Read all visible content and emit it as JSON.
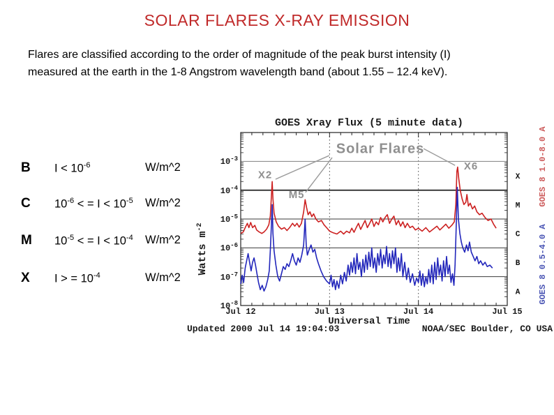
{
  "slide": {
    "title": "SOLAR FLARES X-RAY EMISSION",
    "title_color": "#c02929",
    "intro": {
      "line1": "Flares are classified according to the order of magnitude of the peak burst intensity (I)",
      "line2": "measured at the earth in the 1-8 Angstrom wavelength band  (about 1.55 – 12.4 keV)."
    },
    "classes": [
      {
        "letter": "B",
        "formula": [
          [
            "I < 10",
            "-6"
          ]
        ],
        "unit": "W/m^2"
      },
      {
        "letter": "C",
        "formula": [
          [
            "10",
            "-6"
          ],
          [
            " < = I < 10",
            "-5"
          ]
        ],
        "unit": "W/m^2"
      },
      {
        "letter": "M",
        "formula": [
          [
            "10",
            "-5"
          ],
          [
            " < = I < 10",
            "-4"
          ]
        ],
        "unit": "W/m^2"
      },
      {
        "letter": "X",
        "formula": [
          [
            "I > = 10",
            "-4"
          ]
        ],
        "unit": "W/m^2"
      }
    ]
  },
  "chart": {
    "title": "GOES Xray Flux (5 minute data)",
    "xlabel": "Universal Time",
    "ylabel_text": "Watts m",
    "ylabel_exp": "-2",
    "updated": "Updated 2000 Jul 14 19:04:03",
    "source": "NOAA/SEC Boulder, CO USA",
    "x_ticks": [
      "Jul 12",
      "Jul 13",
      "Jul 14",
      "Jul 15"
    ],
    "y_exponents": [
      "-3",
      "-4",
      "-5",
      "-6",
      "-7",
      "-8"
    ],
    "right_class_letters": [
      "X",
      "M",
      "C",
      "B",
      "A"
    ],
    "right_axis_labels": [
      {
        "text": "GOES 8 1.0-8.0 A",
        "color": "#cc5a5a"
      },
      {
        "text": "GOES 8 0.5-4.0 A",
        "color": "#4a55b4"
      }
    ],
    "colors": {
      "red_series": "#cc2020",
      "blue_series": "#2226bb",
      "annotation_gray": "#8f8f8f"
    }
  },
  "chart_data": {
    "type": "line",
    "title": "GOES Xray Flux (5 minute data)",
    "xlabel": "Universal Time",
    "ylabel": "Watts m^-2",
    "x_unit": "hours after 2000 Jul 12 00:00 UT",
    "x_range": [
      0,
      72
    ],
    "x_day_ticks": [
      {
        "t": 0,
        "label": "Jul 12"
      },
      {
        "t": 24,
        "label": "Jul 13"
      },
      {
        "t": 48,
        "label": "Jul 14"
      },
      {
        "t": 72,
        "label": "Jul 15"
      }
    ],
    "y_scale": "log10(flux W/m^2)",
    "y_range_log": [
      -8,
      -2
    ],
    "y_tick_exponents": [
      -3,
      -4,
      -5,
      -6,
      -7,
      -8
    ],
    "class_bands": [
      {
        "letter": "X",
        "log_mid": -3.5
      },
      {
        "letter": "M",
        "log_mid": -4.5
      },
      {
        "letter": "C",
        "log_mid": -5.5
      },
      {
        "letter": "B",
        "log_mid": -6.5
      },
      {
        "letter": "A",
        "log_mid": -7.5
      }
    ],
    "series": [
      {
        "name": "GOES 8 1.0-8.0 A",
        "color": "#cc2020",
        "points": [
          [
            0,
            -5.5
          ],
          [
            0.7,
            -5.45
          ],
          [
            1.2,
            -5.3
          ],
          [
            1.8,
            -5.15
          ],
          [
            2.2,
            -5.3
          ],
          [
            2.7,
            -5.12
          ],
          [
            3.2,
            -5.3
          ],
          [
            3.8,
            -5.22
          ],
          [
            4.3,
            -5.38
          ],
          [
            5,
            -5.45
          ],
          [
            5.7,
            -5.5
          ],
          [
            6.3,
            -5.45
          ],
          [
            7,
            -5.35
          ],
          [
            7.6,
            -5.2
          ],
          [
            8,
            -4.9
          ],
          [
            8.3,
            -4.2
          ],
          [
            8.5,
            -3.7
          ],
          [
            8.7,
            -4.3
          ],
          [
            9,
            -4.8
          ],
          [
            9.6,
            -5.1
          ],
          [
            10.2,
            -5.25
          ],
          [
            11,
            -5.35
          ],
          [
            11.8,
            -5.3
          ],
          [
            12.5,
            -5.4
          ],
          [
            13.2,
            -5.3
          ],
          [
            14,
            -5.15
          ],
          [
            14.6,
            -5.25
          ],
          [
            15.2,
            -5.15
          ],
          [
            15.8,
            -5.28
          ],
          [
            16.4,
            -5.15
          ],
          [
            17,
            -4.75
          ],
          [
            17.4,
            -4.33
          ],
          [
            17.8,
            -4.6
          ],
          [
            18.2,
            -4.85
          ],
          [
            18.7,
            -4.75
          ],
          [
            19.2,
            -4.92
          ],
          [
            19.7,
            -4.82
          ],
          [
            20.3,
            -5.0
          ],
          [
            21,
            -5.1
          ],
          [
            21.8,
            -5.05
          ],
          [
            22.5,
            -5.2
          ],
          [
            23.2,
            -5.3
          ],
          [
            24,
            -5.42
          ],
          [
            25,
            -5.48
          ],
          [
            26,
            -5.52
          ],
          [
            27,
            -5.42
          ],
          [
            27.8,
            -5.52
          ],
          [
            28.6,
            -5.42
          ],
          [
            29.4,
            -5.48
          ],
          [
            30,
            -5.32
          ],
          [
            30.6,
            -5.46
          ],
          [
            31.2,
            -5.3
          ],
          [
            31.8,
            -5.15
          ],
          [
            32.4,
            -5.36
          ],
          [
            33,
            -5.2
          ],
          [
            33.6,
            -5.05
          ],
          [
            34.2,
            -5.3
          ],
          [
            34.8,
            -5.16
          ],
          [
            35.4,
            -5.0
          ],
          [
            36,
            -5.26
          ],
          [
            36.6,
            -5.1
          ],
          [
            37.2,
            -5.2
          ],
          [
            37.8,
            -4.95
          ],
          [
            38.4,
            -5.1
          ],
          [
            39,
            -4.95
          ],
          [
            39.6,
            -4.85
          ],
          [
            40.2,
            -5.15
          ],
          [
            40.8,
            -5.0
          ],
          [
            41.4,
            -4.9
          ],
          [
            42,
            -5.2
          ],
          [
            42.6,
            -5.05
          ],
          [
            43.2,
            -5.25
          ],
          [
            43.8,
            -5.1
          ],
          [
            44.4,
            -5.3
          ],
          [
            45,
            -5.15
          ],
          [
            45.7,
            -5.3
          ],
          [
            46.4,
            -5.25
          ],
          [
            47.2,
            -5.38
          ],
          [
            48,
            -5.32
          ],
          [
            49,
            -5.42
          ],
          [
            50,
            -5.3
          ],
          [
            51,
            -5.45
          ],
          [
            52,
            -5.35
          ],
          [
            53,
            -5.25
          ],
          [
            53.8,
            -5.38
          ],
          [
            54.6,
            -5.28
          ],
          [
            55.4,
            -5.18
          ],
          [
            56.2,
            -5.32
          ],
          [
            57,
            -5.22
          ],
          [
            57.7,
            -5.1
          ],
          [
            58.1,
            -4.5
          ],
          [
            58.4,
            -3.35
          ],
          [
            58.6,
            -3.2
          ],
          [
            58.9,
            -3.6
          ],
          [
            59.3,
            -4.0
          ],
          [
            59.8,
            -4.3
          ],
          [
            60.3,
            -4.5
          ],
          [
            60.8,
            -4.42
          ],
          [
            61.1,
            -4.15
          ],
          [
            61.5,
            -4.55
          ],
          [
            62,
            -4.45
          ],
          [
            62.6,
            -4.65
          ],
          [
            63.2,
            -4.55
          ],
          [
            63.8,
            -4.75
          ],
          [
            64.5,
            -4.85
          ],
          [
            65.2,
            -4.8
          ],
          [
            66,
            -4.95
          ],
          [
            66.8,
            -5.05
          ],
          [
            67.6,
            -5.0
          ],
          [
            68.3,
            -5.18
          ],
          [
            69,
            -5.32
          ]
        ]
      },
      {
        "name": "GOES 8 0.5-4.0 A",
        "color": "#2226bb",
        "points": [
          [
            0,
            -7.25
          ],
          [
            0.4,
            -6.95
          ],
          [
            0.8,
            -7.2
          ],
          [
            1.2,
            -6.7
          ],
          [
            1.6,
            -6.45
          ],
          [
            2,
            -6.2
          ],
          [
            2.4,
            -6.5
          ],
          [
            2.8,
            -6.8
          ],
          [
            3.2,
            -6.5
          ],
          [
            3.6,
            -6.35
          ],
          [
            4,
            -6.6
          ],
          [
            4.4,
            -6.9
          ],
          [
            4.8,
            -7.2
          ],
          [
            5.3,
            -7.45
          ],
          [
            5.8,
            -7.3
          ],
          [
            6.3,
            -7.5
          ],
          [
            6.8,
            -7.35
          ],
          [
            7.3,
            -7.1
          ],
          [
            7.7,
            -6.8
          ],
          [
            8,
            -6.1
          ],
          [
            8.3,
            -5.2
          ],
          [
            8.5,
            -4.5
          ],
          [
            8.7,
            -5.5
          ],
          [
            9,
            -6.1
          ],
          [
            9.5,
            -6.6
          ],
          [
            10,
            -7.0
          ],
          [
            10.5,
            -7.15
          ],
          [
            11,
            -6.9
          ],
          [
            11.5,
            -6.65
          ],
          [
            12,
            -6.75
          ],
          [
            12.5,
            -6.55
          ],
          [
            13,
            -6.65
          ],
          [
            13.5,
            -6.45
          ],
          [
            14,
            -6.2
          ],
          [
            14.5,
            -6.45
          ],
          [
            15,
            -6.6
          ],
          [
            15.5,
            -6.35
          ],
          [
            16,
            -6.5
          ],
          [
            16.5,
            -6.25
          ],
          [
            17,
            -5.9
          ],
          [
            17.4,
            -5.0
          ],
          [
            17.7,
            -5.9
          ],
          [
            18,
            -6.25
          ],
          [
            18.5,
            -6.05
          ],
          [
            19,
            -5.9
          ],
          [
            19.5,
            -6.15
          ],
          [
            20,
            -6.05
          ],
          [
            20.5,
            -6.35
          ],
          [
            21,
            -6.55
          ],
          [
            21.7,
            -6.8
          ],
          [
            22.4,
            -7.0
          ],
          [
            23.2,
            -7.15
          ],
          [
            24,
            -7.25
          ],
          [
            24.4,
            -6.95
          ],
          [
            24.8,
            -7.35
          ],
          [
            25.2,
            -7.1
          ],
          [
            25.6,
            -7.45
          ],
          [
            26,
            -7.15
          ],
          [
            26.5,
            -7.4
          ],
          [
            27,
            -6.95
          ],
          [
            27.5,
            -7.25
          ],
          [
            28,
            -6.85
          ],
          [
            28.5,
            -7.15
          ],
          [
            29,
            -6.6
          ],
          [
            29.4,
            -6.95
          ],
          [
            29.8,
            -6.5
          ],
          [
            30.2,
            -6.85
          ],
          [
            30.6,
            -6.35
          ],
          [
            31,
            -6.9
          ],
          [
            31.4,
            -6.2
          ],
          [
            31.8,
            -6.75
          ],
          [
            32.2,
            -6.5
          ],
          [
            32.6,
            -7.0
          ],
          [
            33,
            -6.4
          ],
          [
            33.4,
            -6.85
          ],
          [
            33.8,
            -6.25
          ],
          [
            34.2,
            -6.75
          ],
          [
            34.6,
            -6.15
          ],
          [
            35,
            -6.65
          ],
          [
            35.4,
            -6.0
          ],
          [
            35.8,
            -6.7
          ],
          [
            36.2,
            -6.35
          ],
          [
            36.6,
            -6.85
          ],
          [
            37,
            -6.2
          ],
          [
            37.4,
            -6.6
          ],
          [
            37.8,
            -6.05
          ],
          [
            38.2,
            -6.7
          ],
          [
            38.6,
            -6.25
          ],
          [
            39,
            -6.55
          ],
          [
            39.4,
            -5.95
          ],
          [
            39.8,
            -6.65
          ],
          [
            40.2,
            -6.2
          ],
          [
            40.6,
            -6.7
          ],
          [
            41,
            -6.1
          ],
          [
            41.4,
            -6.55
          ],
          [
            41.8,
            -6.0
          ],
          [
            42.2,
            -6.85
          ],
          [
            42.6,
            -6.35
          ],
          [
            43,
            -6.8
          ],
          [
            43.4,
            -6.2
          ],
          [
            43.8,
            -7.0
          ],
          [
            44.3,
            -6.5
          ],
          [
            44.8,
            -7.1
          ],
          [
            45.3,
            -6.7
          ],
          [
            45.8,
            -7.2
          ],
          [
            46.4,
            -6.9
          ],
          [
            47,
            -7.3
          ],
          [
            47.5,
            -7.05
          ],
          [
            48,
            -7.2
          ],
          [
            48.4,
            -6.8
          ],
          [
            48.8,
            -7.3
          ],
          [
            49.2,
            -6.9
          ],
          [
            49.6,
            -7.35
          ],
          [
            50,
            -7.0
          ],
          [
            50.4,
            -7.25
          ],
          [
            50.8,
            -6.75
          ],
          [
            51.2,
            -7.2
          ],
          [
            51.6,
            -6.6
          ],
          [
            52,
            -7.25
          ],
          [
            52.4,
            -6.5
          ],
          [
            52.8,
            -7.1
          ],
          [
            53.2,
            -6.35
          ],
          [
            53.6,
            -6.95
          ],
          [
            54,
            -6.6
          ],
          [
            54.4,
            -7.15
          ],
          [
            54.8,
            -6.45
          ],
          [
            55.2,
            -7.0
          ],
          [
            55.6,
            -6.3
          ],
          [
            56,
            -6.9
          ],
          [
            56.4,
            -6.6
          ],
          [
            56.8,
            -7.2
          ],
          [
            57.2,
            -6.9
          ],
          [
            57.6,
            -7.3
          ],
          [
            57.9,
            -6.6
          ],
          [
            58.2,
            -5.3
          ],
          [
            58.5,
            -3.9
          ],
          [
            58.8,
            -5.0
          ],
          [
            59.2,
            -5.5
          ],
          [
            59.6,
            -5.8
          ],
          [
            60,
            -6.0
          ],
          [
            60.5,
            -6.15
          ],
          [
            61,
            -5.9
          ],
          [
            61.4,
            -6.1
          ],
          [
            61.8,
            -5.8
          ],
          [
            62.3,
            -6.15
          ],
          [
            62.8,
            -6.3
          ],
          [
            63.3,
            -6.45
          ],
          [
            63.8,
            -6.3
          ],
          [
            64.3,
            -6.55
          ],
          [
            64.8,
            -6.45
          ],
          [
            65.4,
            -6.6
          ],
          [
            66,
            -6.5
          ],
          [
            66.6,
            -6.65
          ],
          [
            67.3,
            -6.6
          ],
          [
            68,
            -6.7
          ]
        ]
      }
    ],
    "annotations": [
      {
        "label": "Solar Flares",
        "t": 37.7,
        "log": -2.56,
        "size": 20
      },
      {
        "label": "X2",
        "t": 6.6,
        "log": -3.47,
        "size": 15
      },
      {
        "label": "M5",
        "t": 15.1,
        "log": -4.15,
        "size": 15
      },
      {
        "label": "X6",
        "t": 62.2,
        "log": -3.16,
        "size": 15
      }
    ],
    "leader_lines": [
      {
        "from": [
          23.9,
          -2.8
        ],
        "to": [
          9.4,
          -3.62
        ]
      },
      {
        "from": [
          24.7,
          -2.87
        ],
        "to": [
          17.5,
          -4.08
        ]
      },
      {
        "from": [
          49.4,
          -2.56
        ],
        "to": [
          57.9,
          -3.14
        ]
      }
    ]
  }
}
